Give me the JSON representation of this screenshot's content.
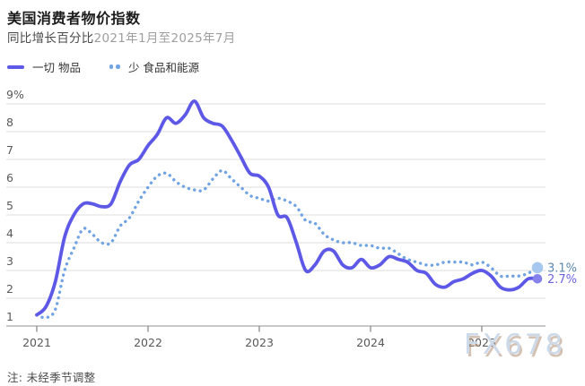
{
  "header": {
    "title": "美国消费者物价指数",
    "subtitle_prefix": "同比增长百分比",
    "subtitle_range": "2021年1月至2025年7月"
  },
  "legend": {
    "items": [
      {
        "label": "一切 物品",
        "style": "solid"
      },
      {
        "label": "少 食品和能源",
        "style": "dotted"
      }
    ]
  },
  "footer": {
    "note": "注: 未经季节调整",
    "watermark": "FX678"
  },
  "end_labels": {
    "all_items": "2.7%",
    "core": "3.1%"
  },
  "colors": {
    "all_items_line": "#5d59e6",
    "all_items_marker": "#8682ec",
    "all_items_label": "#6c66de",
    "core_line": "#6fa3e3",
    "core_marker": "#a6c7ee",
    "core_label": "#5d87ae",
    "grid": "#dcdcdc",
    "axis": "#a9a9a9",
    "tick": "#8a8a8a"
  },
  "chart_data": {
    "type": "line",
    "title": "美国消费者物价指数",
    "subtitle": "同比增长百分比 2021年1月至2025年7月",
    "frequency": "monthly",
    "x_start": "2021-01",
    "x_end": "2025-07",
    "x_tick_labels": [
      "2021",
      "2022",
      "2023",
      "2024",
      "2025"
    ],
    "y_tick_labels": [
      "1",
      "2",
      "3",
      "4",
      "5",
      "6",
      "7",
      "8",
      "9%"
    ],
    "ylim": [
      1,
      9
    ],
    "grid": true,
    "legend_position": "top-left",
    "series": [
      {
        "name": "一切 物品",
        "style": "solid",
        "end_value_label": "2.7%",
        "values": [
          1.4,
          1.7,
          2.6,
          4.2,
          5.0,
          5.4,
          5.4,
          5.3,
          5.4,
          6.2,
          6.8,
          7.0,
          7.5,
          7.9,
          8.5,
          8.3,
          8.6,
          9.1,
          8.5,
          8.3,
          8.2,
          7.7,
          7.1,
          6.5,
          6.4,
          6.0,
          5.0,
          4.9,
          4.0,
          3.0,
          3.2,
          3.7,
          3.7,
          3.2,
          3.1,
          3.4,
          3.1,
          3.2,
          3.5,
          3.4,
          3.3,
          3.0,
          2.9,
          2.5,
          2.4,
          2.6,
          2.7,
          2.9,
          3.0,
          2.8,
          2.4,
          2.3,
          2.4,
          2.7,
          2.7
        ]
      },
      {
        "name": "少 食品和能源",
        "style": "dotted",
        "end_value_label": "3.1%",
        "values": [
          1.4,
          1.3,
          1.6,
          3.0,
          3.8,
          4.5,
          4.3,
          4.0,
          4.0,
          4.6,
          4.9,
          5.5,
          6.0,
          6.4,
          6.5,
          6.2,
          6.0,
          5.9,
          5.9,
          6.3,
          6.6,
          6.3,
          6.0,
          5.7,
          5.6,
          5.5,
          5.6,
          5.5,
          5.3,
          4.8,
          4.7,
          4.3,
          4.1,
          4.0,
          4.0,
          3.9,
          3.9,
          3.8,
          3.8,
          3.6,
          3.4,
          3.3,
          3.2,
          3.2,
          3.3,
          3.3,
          3.3,
          3.2,
          3.3,
          3.1,
          2.8,
          2.8,
          2.8,
          2.9,
          3.1
        ]
      }
    ]
  }
}
